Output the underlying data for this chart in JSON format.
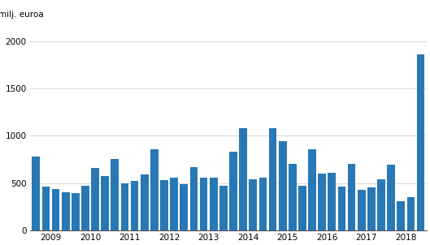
{
  "values": [
    780,
    460,
    440,
    400,
    390,
    470,
    660,
    570,
    750,
    500,
    525,
    590,
    860,
    530,
    560,
    490,
    670,
    555,
    560,
    470,
    830,
    1080,
    540,
    555,
    1080,
    940,
    700,
    470,
    860,
    600,
    605,
    460,
    700,
    430,
    455,
    535,
    695,
    310,
    350,
    1860
  ],
  "year_labels": [
    "2009",
    "2010",
    "2011",
    "2012",
    "2013",
    "2014",
    "2015",
    "2016",
    "2017",
    "2018"
  ],
  "bar_color": "#2878b5",
  "ylabel": "milj. euroa",
  "ylim": [
    0,
    2200
  ],
  "yticks": [
    0,
    500,
    1000,
    1500,
    2000
  ],
  "background_color": "#ffffff",
  "grid_color": "#c8c8c8"
}
